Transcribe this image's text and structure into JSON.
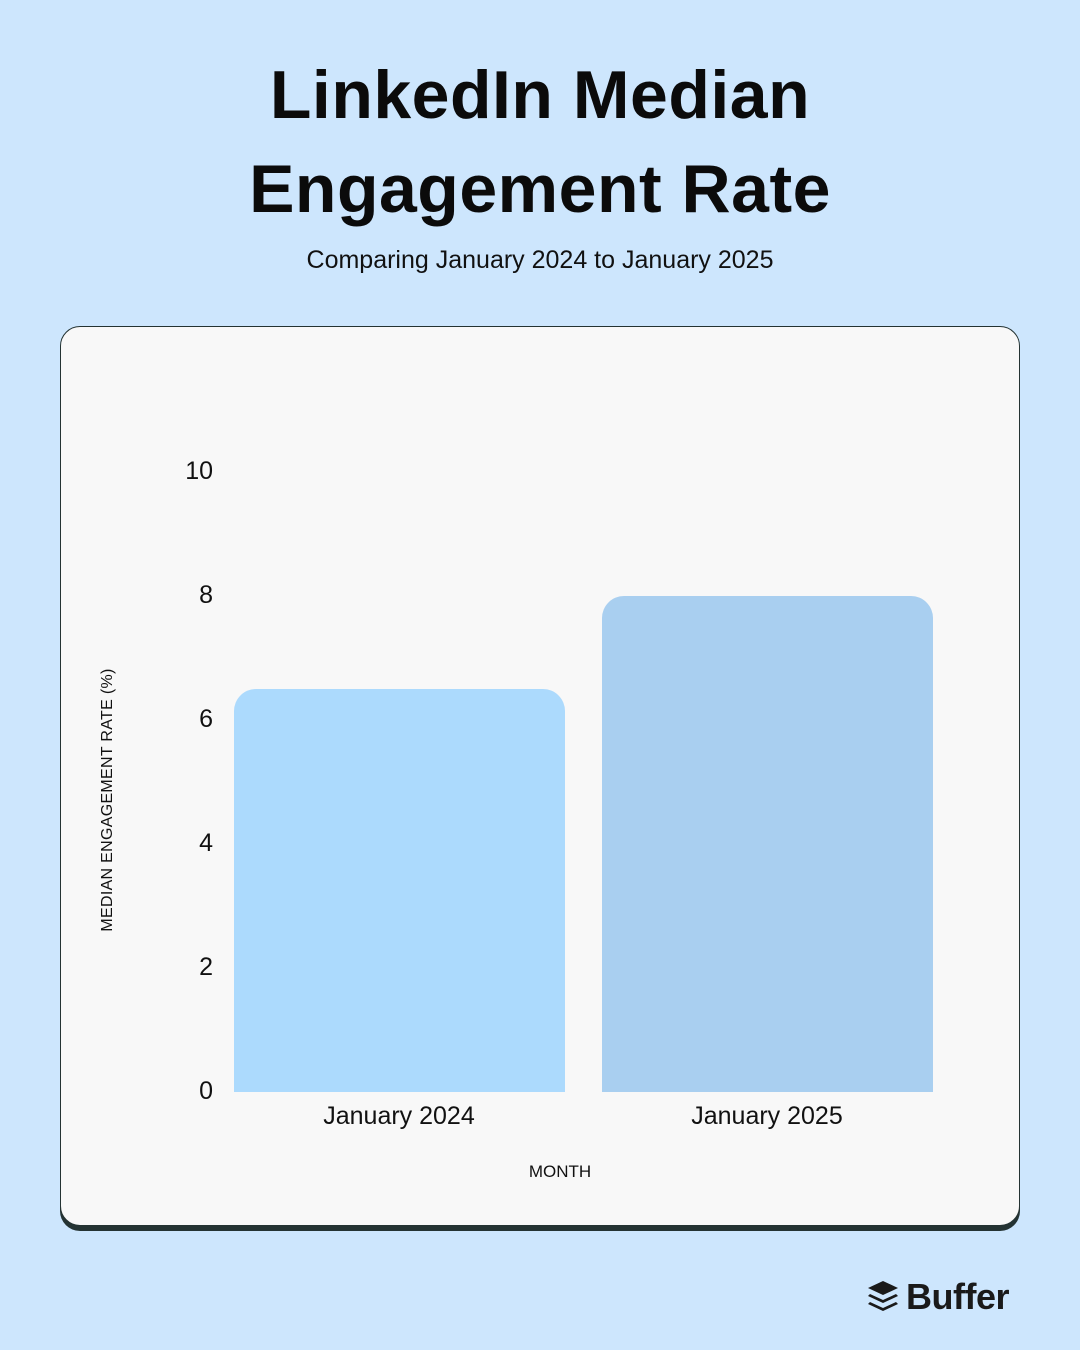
{
  "header": {
    "title_line1": "LinkedIn Median",
    "title_line2": "Engagement Rate",
    "subtitle": "Comparing January 2024 to January 2025"
  },
  "colors": {
    "background": "#cde6fd",
    "card": "#f8f8f8",
    "card_border": "#243333",
    "bar_2024": "#acdafd",
    "bar_2025": "#a9cff0"
  },
  "chart_data": {
    "type": "bar",
    "title": "LinkedIn Median Engagement Rate",
    "subtitle": "Comparing January 2024 to January 2025",
    "categories": [
      "January 2024",
      "January 2025"
    ],
    "values": [
      6.5,
      8.0
    ],
    "xlabel": "MONTH",
    "ylabel": "MEDIAN ENGAGEMENT RATE (%)",
    "ylim": [
      0,
      10
    ],
    "yticks": [
      "0",
      "2",
      "4",
      "6",
      "8",
      "10"
    ],
    "grid": false,
    "legend": null
  },
  "branding": {
    "logo_icon": "buffer-stack-icon",
    "logo_text": "Buffer"
  }
}
